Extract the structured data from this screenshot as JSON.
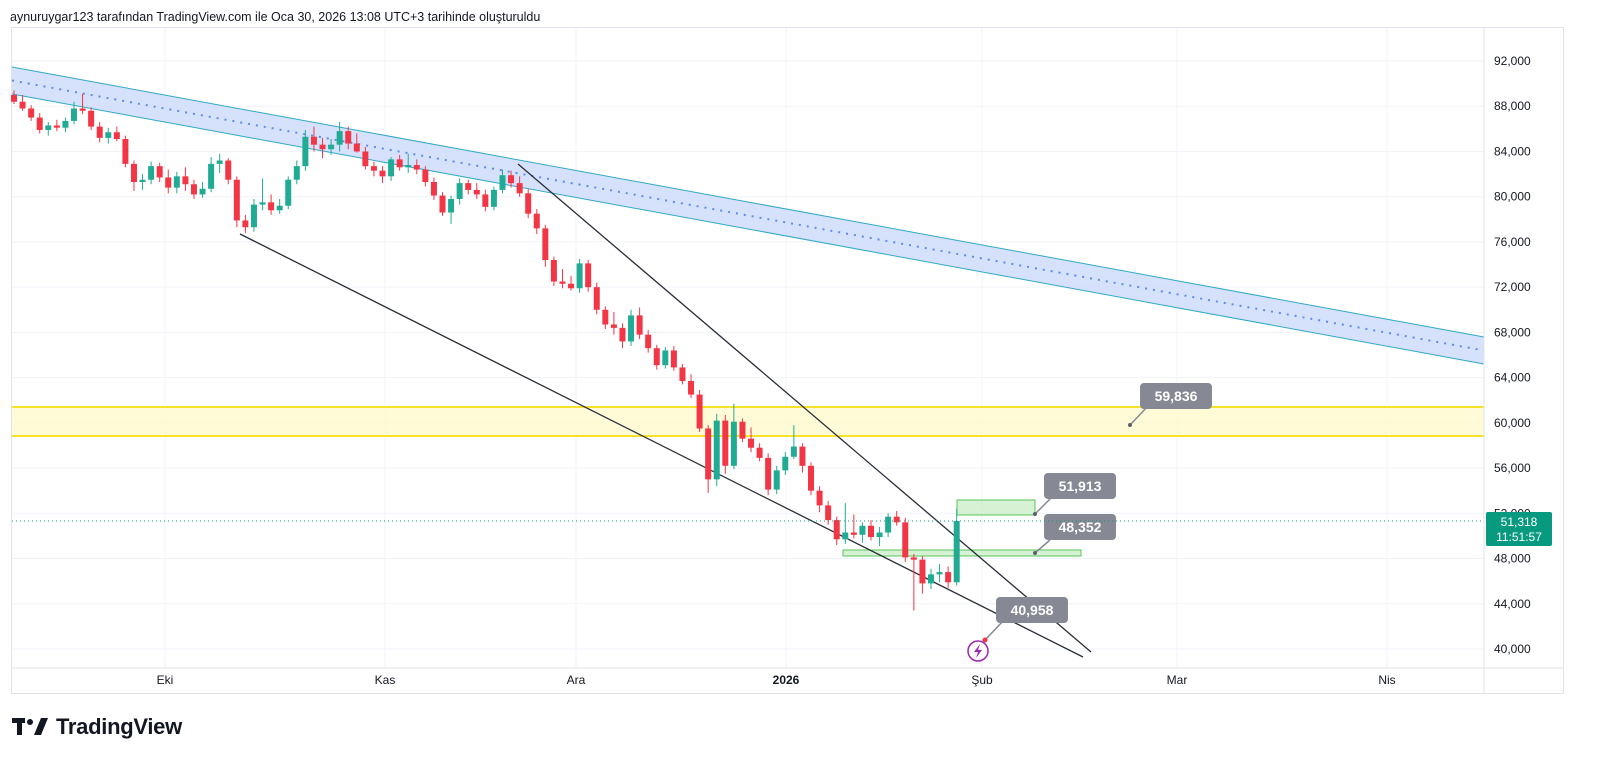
{
  "header": {
    "caption": "aynuruygar123 tarafından TradingView.com ile Oca 30, 2026 13:08 UTC+3 tarihinde oluşturuldu"
  },
  "brand": {
    "name": "TradingView",
    "icon": "tradingview-logo-icon"
  },
  "colors": {
    "up": "#22ab94",
    "down": "#f23645",
    "channel_fill": "#cfdcfb",
    "channel_line": "#2fa9c9",
    "zone_yellow": "#f7e227",
    "zone_green": "#57c65a",
    "wedge_line": "#2a2e39",
    "label_bg": "#868993",
    "price_tag": "#089981"
  },
  "chart_data": {
    "type": "candlestick",
    "x_labels": [
      {
        "label": "Eki",
        "bold": false
      },
      {
        "label": "Kas",
        "bold": false
      },
      {
        "label": "Ara",
        "bold": false
      },
      {
        "label": "2026",
        "bold": true
      },
      {
        "label": "Şub",
        "bold": false
      },
      {
        "label": "Mar",
        "bold": false
      },
      {
        "label": "Nis",
        "bold": false
      }
    ],
    "y_ticks": [
      "92,000",
      "88,000",
      "84,000",
      "80,000",
      "76,000",
      "72,000",
      "68,000",
      "64,000",
      "60,000",
      "56,000",
      "52,000",
      "48,000",
      "44,000",
      "40,000"
    ],
    "ylim": [
      38500,
      94500
    ],
    "grid": true,
    "last_price": {
      "value": "51,318",
      "countdown": "11:51:57"
    },
    "annotations": [
      {
        "text": "59,836"
      },
      {
        "text": "51,913"
      },
      {
        "text": "48,352"
      },
      {
        "text": "40,958"
      }
    ],
    "candles": [
      [
        89000,
        89400,
        88200,
        88400
      ],
      [
        88400,
        89000,
        87600,
        87800
      ],
      [
        87800,
        88100,
        86700,
        87000
      ],
      [
        87000,
        87400,
        85600,
        85900
      ],
      [
        85900,
        86600,
        85400,
        86300
      ],
      [
        86300,
        86800,
        85800,
        86100
      ],
      [
        86100,
        87000,
        85700,
        86700
      ],
      [
        86700,
        88400,
        86400,
        87800
      ],
      [
        87800,
        89100,
        87300,
        87600
      ],
      [
        87600,
        87900,
        85900,
        86200
      ],
      [
        86200,
        86600,
        84800,
        85200
      ],
      [
        85200,
        86100,
        84700,
        85700
      ],
      [
        85700,
        86200,
        84900,
        85100
      ],
      [
        85100,
        85400,
        82600,
        82900
      ],
      [
        82900,
        83200,
        80500,
        81300
      ],
      [
        81300,
        82000,
        80600,
        81500
      ],
      [
        81500,
        83100,
        81100,
        82700
      ],
      [
        82700,
        83000,
        81300,
        81700
      ],
      [
        81700,
        82400,
        80300,
        80800
      ],
      [
        80800,
        82200,
        80300,
        81800
      ],
      [
        81800,
        82600,
        80500,
        81100
      ],
      [
        81100,
        81500,
        79800,
        80200
      ],
      [
        80200,
        81300,
        79900,
        80700
      ],
      [
        80700,
        83500,
        80400,
        82900
      ],
      [
        82900,
        83800,
        82100,
        83200
      ],
      [
        83200,
        83400,
        81100,
        81500
      ],
      [
        81500,
        81800,
        77300,
        77900
      ],
      [
        77900,
        78400,
        76800,
        77300
      ],
      [
        77300,
        79800,
        76900,
        79300
      ],
      [
        79300,
        81600,
        78800,
        79500
      ],
      [
        79500,
        80200,
        78400,
        78800
      ],
      [
        78800,
        79800,
        78500,
        79200
      ],
      [
        79200,
        81800,
        78900,
        81500
      ],
      [
        81500,
        83200,
        81100,
        82700
      ],
      [
        82700,
        85900,
        82300,
        85300
      ],
      [
        85300,
        86200,
        84000,
        84600
      ],
      [
        84600,
        85200,
        83400,
        84200
      ],
      [
        84200,
        85100,
        83700,
        84600
      ],
      [
        84600,
        86600,
        84000,
        85800
      ],
      [
        85800,
        86200,
        84200,
        84700
      ],
      [
        84700,
        85600,
        83900,
        84000
      ],
      [
        84000,
        84400,
        82400,
        82700
      ],
      [
        82700,
        83100,
        81800,
        82300
      ],
      [
        82300,
        82700,
        81200,
        81800
      ],
      [
        81800,
        83500,
        81400,
        83300
      ],
      [
        83300,
        83700,
        82300,
        82600
      ],
      [
        82600,
        83800,
        82100,
        82800
      ],
      [
        82800,
        83300,
        82000,
        82400
      ],
      [
        82400,
        82700,
        80900,
        81300
      ],
      [
        81300,
        81700,
        79700,
        80100
      ],
      [
        80100,
        80400,
        78300,
        78600
      ],
      [
        78600,
        80100,
        77600,
        79800
      ],
      [
        79800,
        81600,
        79300,
        81200
      ],
      [
        81200,
        81500,
        80200,
        80600
      ],
      [
        80600,
        81200,
        79800,
        80200
      ],
      [
        80200,
        80600,
        78700,
        79100
      ],
      [
        79100,
        80900,
        78800,
        80600
      ],
      [
        80600,
        82400,
        80300,
        81900
      ],
      [
        81900,
        82300,
        80800,
        81200
      ],
      [
        81200,
        81800,
        80000,
        80300
      ],
      [
        80300,
        80700,
        78100,
        78500
      ],
      [
        78500,
        78900,
        76700,
        77200
      ],
      [
        77200,
        77500,
        73800,
        74400
      ],
      [
        74400,
        74700,
        72100,
        72500
      ],
      [
        72500,
        73600,
        71900,
        72300
      ],
      [
        72300,
        73000,
        71700,
        71900
      ],
      [
        71900,
        74500,
        71500,
        74100
      ],
      [
        74100,
        74400,
        71600,
        72000
      ],
      [
        72000,
        72400,
        69600,
        70000
      ],
      [
        70000,
        70300,
        68300,
        68700
      ],
      [
        68700,
        69800,
        67800,
        68400
      ],
      [
        68400,
        68800,
        66600,
        67200
      ],
      [
        67200,
        70000,
        66800,
        69500
      ],
      [
        69500,
        70200,
        67400,
        67800
      ],
      [
        67800,
        68200,
        66200,
        66600
      ],
      [
        66600,
        66900,
        64700,
        65100
      ],
      [
        65100,
        66700,
        64800,
        66400
      ],
      [
        66400,
        66800,
        64600,
        64900
      ],
      [
        64900,
        65200,
        63400,
        63700
      ],
      [
        63700,
        64300,
        62200,
        62500
      ],
      [
        62500,
        62900,
        59200,
        59500
      ],
      [
        59500,
        59800,
        53800,
        55000
      ],
      [
        55000,
        60800,
        54400,
        60200
      ],
      [
        60200,
        60700,
        55500,
        56200
      ],
      [
        56200,
        61700,
        55900,
        60100
      ],
      [
        60100,
        60400,
        58300,
        58600
      ],
      [
        58600,
        59600,
        57400,
        57800
      ],
      [
        57800,
        58200,
        56600,
        56900
      ],
      [
        56900,
        57300,
        53600,
        54100
      ],
      [
        54100,
        56200,
        53700,
        55800
      ],
      [
        55800,
        57400,
        55400,
        57000
      ],
      [
        57000,
        59800,
        56800,
        57900
      ],
      [
        57900,
        58200,
        55600,
        56200
      ],
      [
        56200,
        56500,
        53600,
        54000
      ],
      [
        54000,
        54400,
        52100,
        52700
      ],
      [
        52700,
        53100,
        51000,
        51400
      ],
      [
        51400,
        51700,
        49200,
        49700
      ],
      [
        49700,
        52900,
        49300,
        50300
      ],
      [
        50300,
        51900,
        49800,
        50100
      ],
      [
        50100,
        51200,
        49400,
        50900
      ],
      [
        50900,
        51400,
        49600,
        49900
      ],
      [
        49900,
        50800,
        49100,
        50300
      ],
      [
        50300,
        52000,
        49900,
        51700
      ],
      [
        51700,
        52200,
        50900,
        51200
      ],
      [
        51200,
        51600,
        47700,
        48100
      ],
      [
        48100,
        48400,
        43400,
        47900
      ],
      [
        47900,
        48200,
        44900,
        45800
      ],
      [
        45800,
        47100,
        45300,
        46600
      ],
      [
        46600,
        47500,
        45900,
        46800
      ],
      [
        46800,
        47300,
        45400,
        45900
      ],
      [
        45900,
        52400,
        45600,
        51318
      ]
    ]
  }
}
